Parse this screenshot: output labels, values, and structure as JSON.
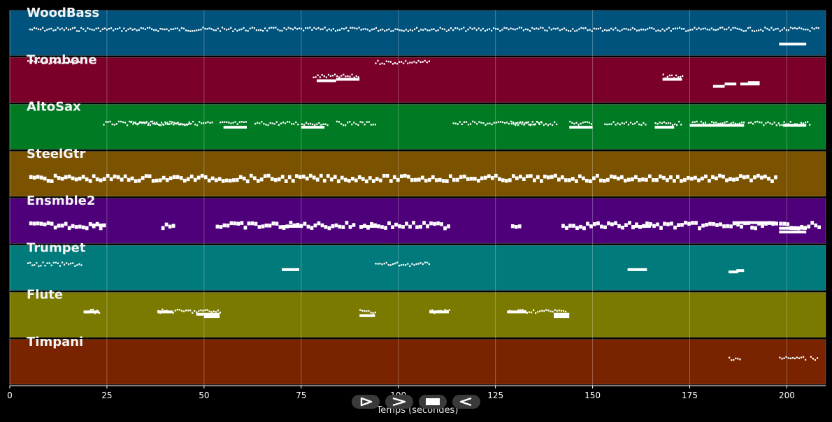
{
  "chart_data": {
    "type": "piano-roll",
    "xlabel": "Temps (secondes)",
    "xlim": [
      0,
      210
    ],
    "xticks": [
      0,
      25,
      50,
      75,
      100,
      125,
      150,
      175,
      200
    ],
    "tracks": [
      {
        "name": "WoodBass",
        "color": "#00537c",
        "segments": [
          [
            5,
            208,
            "dots"
          ]
        ],
        "blocks": [
          [
            198,
            205,
            0.7
          ]
        ]
      },
      {
        "name": "Trombone",
        "color": "#7a0029",
        "segments": [
          [
            4.5,
            18.5,
            "dots-high"
          ],
          [
            78,
            90,
            "dots"
          ],
          [
            94,
            108,
            "dots-high"
          ],
          [
            168,
            173,
            "dots"
          ]
        ],
        "blocks": [
          [
            79,
            84,
            0.48
          ],
          [
            84,
            90,
            0.45
          ],
          [
            168,
            173,
            0.45
          ],
          [
            181,
            184,
            0.6
          ],
          [
            184,
            187,
            0.55
          ],
          [
            188,
            193,
            0.55
          ],
          [
            190,
            193,
            0.52
          ]
        ]
      },
      {
        "name": "AltoSax",
        "color": "#007a23",
        "segments": [
          [
            24,
            46,
            "dots"
          ],
          [
            31,
            52,
            "dots"
          ],
          [
            54,
            61,
            "dots"
          ],
          [
            63,
            74,
            "dots"
          ],
          [
            75,
            82,
            "dots"
          ],
          [
            84,
            94,
            "dots"
          ],
          [
            114,
            137,
            "dots"
          ],
          [
            129,
            141,
            "dots"
          ],
          [
            144,
            150,
            "dots"
          ],
          [
            153,
            164,
            "dots"
          ],
          [
            166,
            173,
            "dots"
          ],
          [
            175,
            189,
            "dots"
          ],
          [
            190,
            198,
            "dots"
          ],
          [
            198,
            206,
            "dots"
          ]
        ],
        "blocks": [
          [
            55,
            61,
            0.47
          ],
          [
            75,
            81,
            0.47
          ],
          [
            144,
            150,
            0.47
          ],
          [
            166,
            171,
            0.47
          ],
          [
            175,
            189,
            0.43
          ],
          [
            199,
            205,
            0.43
          ]
        ]
      },
      {
        "name": "SteelGtr",
        "color": "#7a5200",
        "segments": [
          [
            5,
            197,
            "band"
          ]
        ],
        "blocks": []
      },
      {
        "name": "Ensmble2",
        "color": "#4d007a",
        "segments": [
          [
            5,
            24,
            "band"
          ],
          [
            39,
            42,
            "band"
          ],
          [
            53,
            89,
            "band"
          ],
          [
            90,
            113,
            "band"
          ],
          [
            129,
            131,
            "band"
          ],
          [
            142,
            197,
            "band"
          ],
          [
            198,
            208,
            "band"
          ]
        ],
        "blocks": [
          [
            21,
            24,
            0.55
          ],
          [
            70,
            75,
            0.58
          ],
          [
            90,
            95,
            0.58
          ],
          [
            160,
            165,
            0.58
          ],
          [
            186,
            197,
            0.5
          ],
          [
            198,
            205,
            0.62
          ],
          [
            198,
            205,
            0.7
          ]
        ]
      },
      {
        "name": "Trumpet",
        "color": "#007a7a",
        "segments": [
          [
            4.5,
            18.5,
            "dots"
          ],
          [
            94,
            108,
            "dots"
          ]
        ],
        "blocks": [
          [
            70,
            74.5,
            0.5
          ],
          [
            159,
            164,
            0.5
          ],
          [
            185,
            187.5,
            0.55
          ],
          [
            187,
            189,
            0.52
          ]
        ]
      },
      {
        "name": "Flute",
        "color": "#7a7a00",
        "segments": [
          [
            19,
            23,
            "dots"
          ],
          [
            38,
            54,
            "dots"
          ],
          [
            90,
            94,
            "dots"
          ],
          [
            108,
            113,
            "dots"
          ],
          [
            128,
            143,
            "dots"
          ]
        ],
        "blocks": [
          [
            19,
            23,
            0.4
          ],
          [
            38,
            42,
            0.4
          ],
          [
            48,
            54,
            0.45
          ],
          [
            50,
            54,
            0.5
          ],
          [
            90,
            94,
            0.48
          ],
          [
            108,
            113,
            0.4
          ],
          [
            128,
            133,
            0.4
          ],
          [
            140,
            144,
            0.45
          ],
          [
            140,
            144,
            0.5
          ]
        ]
      },
      {
        "name": "Timpani",
        "color": "#7a2300",
        "segments": [
          [
            185,
            188,
            "dots"
          ],
          [
            198,
            205,
            "dots"
          ],
          [
            206,
            208,
            "dots"
          ]
        ],
        "blocks": []
      }
    ]
  },
  "controls": {
    "play_icon": "play-icon",
    "forward_icon": "fast-forward-icon",
    "stop_icon": "stop-icon",
    "rewind_icon": "rewind-icon"
  }
}
